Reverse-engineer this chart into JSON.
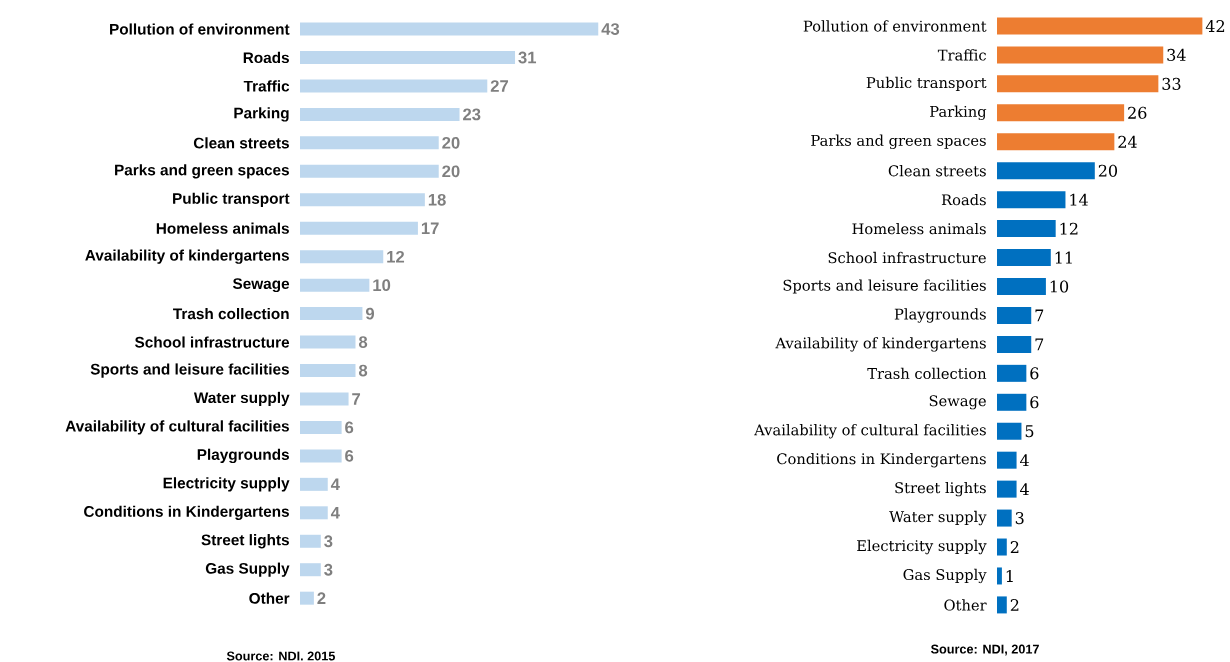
{
  "chart_data": [
    {
      "type": "bar",
      "orientation": "horizontal",
      "categories": [
        "Pollution of environment",
        "Roads",
        "Traffic",
        "Parking",
        "Clean streets",
        "Parks and green spaces",
        "Public transport",
        "Homeless animals",
        "Availability of kindergartens",
        "Sewage",
        "Trash collection",
        "School infrastructure",
        "Sports and leisure facilities",
        "Water supply",
        "Availability of cultural facilities",
        "Playgrounds",
        "Electricity supply",
        "Conditions in Kindergartens",
        "Street lights",
        "Gas Supply",
        "Other"
      ],
      "values": [
        43,
        31,
        27,
        23,
        20,
        20,
        18,
        17,
        12,
        10,
        9,
        8,
        8,
        7,
        6,
        6,
        4,
        4,
        3,
        3,
        2
      ],
      "color": "#bdd7ee",
      "data_labels": true,
      "annotations": [
        "Source: NDI. 2015"
      ]
    },
    {
      "type": "bar",
      "orientation": "horizontal",
      "categories": [
        "Pollution of environment",
        "Traffic",
        "Public transport",
        "Parking",
        "Parks and green spaces",
        "Clean streets",
        "Roads",
        "Homeless animals",
        "School infrastructure",
        "Sports and leisure facilities",
        "Playgrounds",
        "Availability of kindergartens",
        "Trash collection",
        "Sewage",
        "Availability of cultural facilities",
        "Conditions in Kindergartens",
        "Street lights",
        "Water supply",
        "Electricity supply",
        "Gas Supply",
        "Other"
      ],
      "values": [
        42,
        34,
        33,
        26,
        24,
        20,
        14,
        12,
        11,
        10,
        7,
        7,
        6,
        6,
        5,
        4,
        4,
        3,
        2,
        1,
        2
      ],
      "colors": [
        "#ed7d31",
        "#ed7d31",
        "#ed7d31",
        "#ed7d31",
        "#ed7d31",
        "#0070c0",
        "#0070c0",
        "#0070c0",
        "#0070c0",
        "#0070c0",
        "#0070c0",
        "#0070c0",
        "#0070c0",
        "#0070c0",
        "#0070c0",
        "#0070c0",
        "#0070c0",
        "#0070c0",
        "#0070c0",
        "#0070c0",
        "#0070c0"
      ],
      "data_labels": true,
      "annotations": [
        "Source: NDI, 2017"
      ]
    }
  ]
}
